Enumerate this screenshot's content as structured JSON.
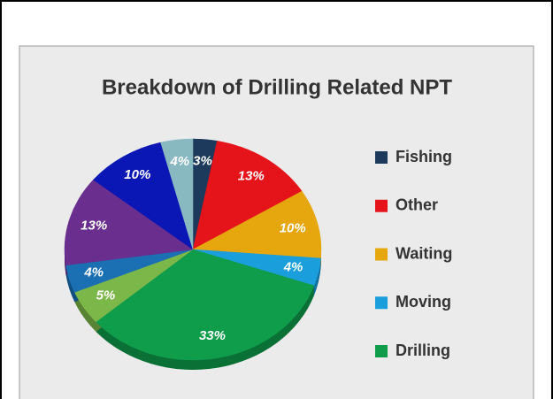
{
  "chart_data": {
    "type": "pie",
    "title": "Breakdown of Drilling Related NPT",
    "categories": [
      "Fishing",
      "Other",
      "Waiting",
      "Moving",
      "Drilling",
      null,
      null,
      null,
      null,
      null
    ],
    "values": [
      3,
      13,
      10,
      4,
      33,
      5,
      4,
      13,
      10,
      4
    ],
    "value_labels": [
      "3%",
      "13%",
      "10%",
      "4%",
      "33%",
      "5%",
      "4%",
      "13%",
      "10%",
      "4%"
    ],
    "colors": [
      "#1d3a5c",
      "#e5141a",
      "#e6a70e",
      "#1b9fdc",
      "#0f9d4b",
      "#7cb74a",
      "#1b6fb3",
      "#6a2e8e",
      "#0b17b5",
      "#88b9c1"
    ],
    "legend": "right"
  }
}
